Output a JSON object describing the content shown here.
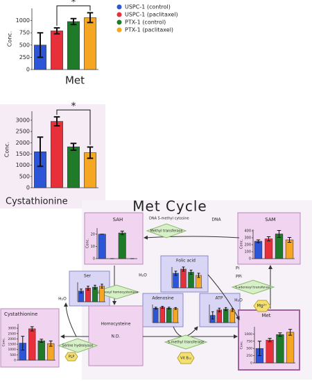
{
  "legend": [
    {
      "name": "USPC-1 (control)",
      "color": "#2d55d8"
    },
    {
      "name": "USPC-1 (paclitaxel)",
      "color": "#e8303a"
    },
    {
      "name": "PTX-1 (control)",
      "color": "#1f7a2a"
    },
    {
      "name": "PTX-1 (paclitaxel)",
      "color": "#f5a623"
    }
  ],
  "chart_data": [
    {
      "type": "bar",
      "title": "Met",
      "ylabel": "Conc.",
      "categories": [
        null,
        null,
        null,
        null
      ],
      "values": [
        500,
        790,
        980,
        1060
      ],
      "errors": [
        250,
        60,
        60,
        100
      ],
      "ylim": [
        0,
        1250
      ],
      "yticks": [
        0,
        250,
        500,
        750,
        1000
      ],
      "significance": {
        "label": "*",
        "pair": [
          1,
          3
        ]
      }
    },
    {
      "type": "bar",
      "title": "Cystathionine",
      "ylabel": "Conc.",
      "categories": [
        null,
        null,
        null,
        null
      ],
      "values": [
        1600,
        2950,
        1820,
        1560
      ],
      "errors": [
        650,
        200,
        150,
        250
      ],
      "ylim": [
        0,
        3400
      ],
      "yticks": [
        0,
        500,
        1000,
        1500,
        2000,
        2500,
        3000
      ],
      "significance": {
        "label": "*",
        "pair": [
          1,
          3
        ]
      }
    },
    {
      "type": "bar",
      "title": "SAH",
      "ylabel": "Conc.",
      "categories": [
        null,
        null,
        null,
        null
      ],
      "values": [
        20,
        0,
        21,
        0
      ],
      "errors": [
        0,
        0,
        1.5,
        0
      ],
      "ylim": [
        0,
        25
      ],
      "yticks": [
        0,
        10,
        20
      ]
    },
    {
      "type": "bar",
      "title": "SAM",
      "ylabel": "Conc.",
      "categories": [
        null,
        null,
        null,
        null
      ],
      "values": [
        250,
        285,
        355,
        270
      ],
      "errors": [
        20,
        30,
        50,
        35
      ],
      "ylim": [
        0,
        420
      ],
      "yticks": [
        0,
        100,
        200,
        300,
        400
      ]
    },
    {
      "type": "bar",
      "title": "Folic acid",
      "categories": [
        null,
        null,
        null,
        null
      ],
      "values": [
        7,
        9,
        7.5,
        6
      ],
      "errors": [
        1,
        1,
        1,
        1
      ],
      "ylim": [
        0,
        10
      ]
    },
    {
      "type": "bar",
      "title": "Ser",
      "categories": [
        null,
        null,
        null,
        null
      ],
      "values": [
        55,
        70,
        75,
        80
      ],
      "errors": [
        10,
        10,
        10,
        10
      ],
      "ylim": [
        0,
        100
      ]
    },
    {
      "type": "bar",
      "title": "Adenosine",
      "categories": [
        null,
        null,
        null,
        null
      ],
      "values": [
        80,
        85,
        80,
        78
      ],
      "errors": [
        5,
        5,
        5,
        5
      ],
      "ylim": [
        0,
        100
      ]
    },
    {
      "type": "bar",
      "title": "ATP",
      "categories": [
        null,
        null,
        null,
        null
      ],
      "values": [
        40,
        70,
        75,
        70
      ],
      "errors": [
        20,
        10,
        8,
        8
      ],
      "ylim": [
        0,
        100
      ]
    },
    {
      "type": "bar",
      "title": "Met",
      "ylabel": "Conc.",
      "categories": [
        null,
        null,
        null,
        null
      ],
      "values": [
        500,
        790,
        980,
        1060
      ],
      "errors": [
        250,
        60,
        60,
        100
      ],
      "ylim": [
        0,
        1250
      ],
      "yticks": [
        0,
        250,
        500,
        750,
        1000
      ]
    },
    {
      "type": "bar",
      "title": "Cystathionine",
      "ylabel": "Conc.",
      "categories": [
        null,
        null,
        null,
        null
      ],
      "values": [
        1600,
        2950,
        1820,
        1560
      ],
      "errors": [
        650,
        200,
        150,
        250
      ],
      "ylim": [
        0,
        3400
      ],
      "yticks": [
        0,
        500,
        1000,
        1500,
        2000,
        2500,
        3000
      ]
    }
  ],
  "diagram": {
    "title": "Met Cycle",
    "homocysteine": "Homocysteine",
    "homocysteine_value": "N.D.",
    "methyl_transferase": "Methyl transferase",
    "dna_methyl": "DNA 5-methyl cytosine",
    "dna": "DNA",
    "sah_enzyme": "S-adenosyl homocysteinase",
    "h2o_1": "H₂O",
    "sam_enzyme": "S-adenosyl transferase",
    "pi": "Pi",
    "ppi": "PPi",
    "mg": "Mg²⁺",
    "h2o_2": "H₂O",
    "h2o_3": "H₂O",
    "serine_enzyme": "Serine hydrolyase",
    "plp": "PLP",
    "smethyl_enzyme": "S-methyl transferase",
    "vit": "Vit B₁₂"
  }
}
